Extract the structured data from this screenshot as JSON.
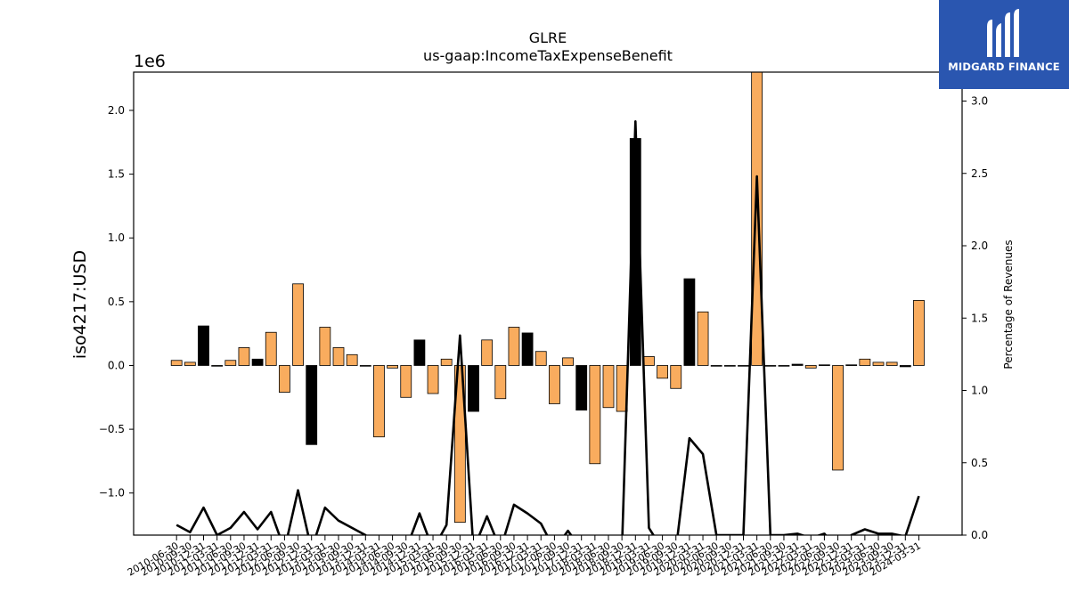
{
  "header": {
    "title": "GLRE",
    "subtitle": "us-gaap:IncomeTaxExpenseBenefit"
  },
  "logo": {
    "text": "MIDGARD FINANCE",
    "color": "#2a56b0",
    "icon": "midgard-finance-logo"
  },
  "chart_data": {
    "type": "bar",
    "title": "GLRE",
    "subtitle": "us-gaap:IncomeTaxExpenseBenefit",
    "ylabel": "iso4217:USD",
    "y2label": "Percentage of Revenues",
    "yscale_label": "1e6",
    "ylim": [
      -1.33,
      2.3
    ],
    "y2lim": [
      0.0,
      3.2
    ],
    "yticks": [
      "−1.0",
      "−0.5",
      "0.0",
      "0.5",
      "1.0",
      "1.5",
      "2.0"
    ],
    "yticks_values": [
      -1.0,
      -0.5,
      0.0,
      0.5,
      1.0,
      1.5,
      2.0
    ],
    "y2ticks": [
      "0.0",
      "0.5",
      "1.0",
      "1.5",
      "2.0",
      "2.5",
      "3.0"
    ],
    "y2ticks_values": [
      0.0,
      0.5,
      1.0,
      1.5,
      2.0,
      2.5,
      3.0
    ],
    "colors": {
      "orange": "#f9ac5e",
      "black": "#000000",
      "line": "#000000"
    },
    "categories": [
      "2010-06-30",
      "2010-09-30",
      "2010-12-31",
      "2011-03-31",
      "2011-06-30",
      "2011-09-30",
      "2011-12-31",
      "2012-03-31",
      "2012-06-30",
      "2012-09-30",
      "2012-12-31",
      "2013-03-31",
      "2013-06-30",
      "2013-09-30",
      "2013-12-31",
      "2014-03-31",
      "2014-06-30",
      "2014-09-30",
      "2014-12-31",
      "2015-03-31",
      "2015-06-30",
      "2015-09-30",
      "2015-12-31",
      "2016-03-31",
      "2016-06-30",
      "2016-09-30",
      "2016-12-31",
      "2017-03-31",
      "2017-06-30",
      "2017-09-30",
      "2017-12-31",
      "2018-03-31",
      "2018-06-30",
      "2018-09-30",
      "2018-12-31",
      "2019-03-31",
      "2019-06-30",
      "2019-09-30",
      "2019-12-31",
      "2020-03-31",
      "2020-06-30",
      "2020-09-30",
      "2020-12-31",
      "2021-03-31",
      "2021-06-30",
      "2021-09-30",
      "2021-12-31",
      "2022-03-31",
      "2022-06-30",
      "2022-09-30",
      "2022-12-31",
      "2023-03-31",
      "2023-06-30",
      "2023-09-30",
      "2023-12-31",
      "2024-03-31"
    ],
    "xtick_labels": [
      "2010-06-30",
      "2010-09-30",
      "2010-12-31",
      "2011-03-31",
      "2011-06-30",
      "2011-09-30",
      "2011-12-31",
      "2012-03-31",
      "2012-06-30",
      "2012-09-30",
      "2012-12-31",
      "2013-03-31",
      "2013-06-30",
      "2013-09-30",
      "2013-12-31",
      "2014-03-31",
      "2014-06-30",
      "2014-09-30",
      "2014-12-31",
      "2015-03-31",
      "2015-06-30",
      "2015-09-30",
      "2015-12-31",
      "2016-03-31",
      "2016-06-30",
      "2016-09-30",
      "2016-12-31",
      "2017-03-31",
      "2017-06-30",
      "2017-09-30",
      "2017-12-31",
      "2018-03-31",
      "2018-06-30",
      "2018-09-30",
      "2018-12-31",
      "2019-03-31",
      "2019-06-30",
      "2019-09-30",
      "2019-12-31",
      "2020-03-31",
      "2020-06-30",
      "2020-09-30",
      "2020-12-31",
      "2021-03-31",
      "2021-06-30",
      "2021-09-30",
      "2021-12-31",
      "2022-03-31",
      "2022-06-30",
      "2022-09-30",
      "2022-12-31",
      "2023-03-31",
      "2023-06-30",
      "2023-09-30",
      "2023-12-31",
      "2024-03-31"
    ],
    "values": [
      0.04,
      0.025,
      0.31,
      0.0,
      0.04,
      0.14,
      0.05,
      0.26,
      -0.21,
      0.64,
      -0.62,
      0.3,
      0.14,
      0.085,
      0.0,
      -0.56,
      -0.02,
      -0.25,
      0.2,
      -0.22,
      0.05,
      -1.23,
      -0.36,
      0.2,
      -0.26,
      0.3,
      0.255,
      0.11,
      -0.3,
      0.06,
      -0.35,
      -0.77,
      -0.33,
      -0.36,
      1.78,
      0.07,
      -0.1,
      -0.18,
      0.68,
      0.42,
      0.0,
      0.0,
      0.0,
      2.3,
      0.0,
      0.0,
      0.01,
      -0.02,
      0.005,
      -0.82,
      0.005,
      0.05,
      0.025,
      0.025,
      -0.01,
      0.51
    ],
    "bar_colors": [
      "orange",
      "orange",
      "black",
      "orange",
      "orange",
      "orange",
      "black",
      "orange",
      "orange",
      "orange",
      "black",
      "orange",
      "orange",
      "orange",
      "orange",
      "orange",
      "orange",
      "orange",
      "black",
      "orange",
      "orange",
      "orange",
      "black",
      "orange",
      "orange",
      "orange",
      "black",
      "orange",
      "orange",
      "orange",
      "black",
      "orange",
      "orange",
      "orange",
      "black",
      "orange",
      "orange",
      "orange",
      "black",
      "orange",
      "orange",
      "orange",
      "orange",
      "orange",
      "orange",
      "orange",
      "black",
      "orange",
      "orange",
      "orange",
      "black",
      "orange",
      "orange",
      "orange",
      "black",
      "orange"
    ],
    "line_values": [
      0.07,
      0.02,
      0.19,
      0.0,
      0.05,
      0.16,
      0.04,
      0.16,
      -0.1,
      0.31,
      -0.1,
      0.19,
      0.1,
      0.05,
      0.0,
      -0.1,
      -0.1,
      -0.1,
      0.15,
      -0.1,
      0.07,
      1.38,
      -0.1,
      0.13,
      -0.1,
      0.21,
      0.15,
      0.08,
      -0.1,
      0.03,
      -0.1,
      -0.1,
      -0.1,
      -0.1,
      2.86,
      0.05,
      -0.1,
      -0.1,
      0.67,
      0.56,
      0.0,
      0.0,
      0.0,
      2.48,
      0.0,
      0.0,
      0.01,
      -0.02,
      0.01,
      -0.1,
      0.0,
      0.04,
      0.01,
      0.01,
      -0.01,
      0.27
    ],
    "grid": false
  }
}
